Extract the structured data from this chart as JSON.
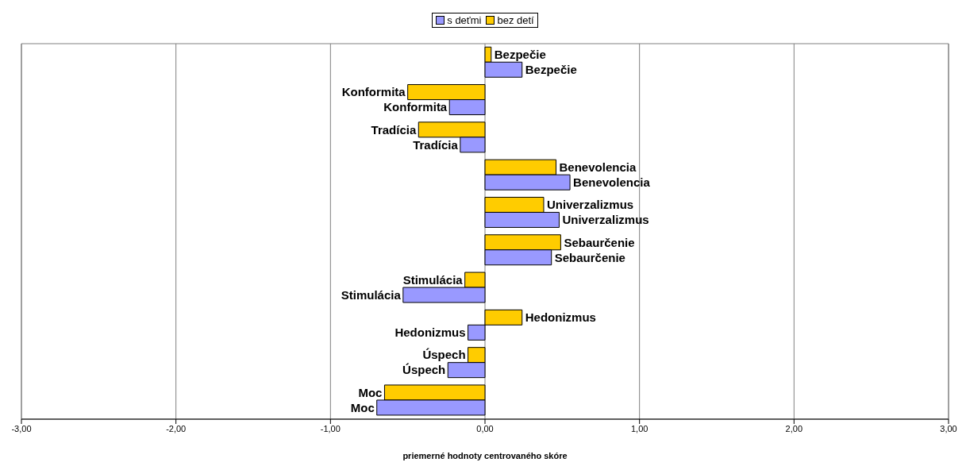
{
  "chart_data": {
    "type": "bar",
    "orientation": "horizontal",
    "xlabel": "priemerné hodnoty centrovaného skóre",
    "categories": [
      "Bezpečie",
      "Konformita",
      "Tradícia",
      "Benevolencia",
      "Univerzalizmus",
      "Sebaurčenie",
      "Stimulácia",
      "Hedonizmus",
      "Úspech",
      "Moc"
    ],
    "series": [
      {
        "name": "s deťmi",
        "color": "#9999ff",
        "values": [
          0.24,
          -0.23,
          -0.16,
          0.55,
          0.48,
          0.43,
          -0.53,
          -0.11,
          -0.24,
          -0.7
        ]
      },
      {
        "name": "bez detí",
        "color": "#ffcc00",
        "values": [
          0.04,
          -0.5,
          -0.43,
          0.46,
          0.38,
          0.49,
          -0.13,
          0.24,
          -0.11,
          -0.65
        ]
      }
    ],
    "xlim": [
      -3,
      3
    ],
    "xticks": [
      {
        "value": -3,
        "label": "-3,00"
      },
      {
        "value": -2,
        "label": "-2,00"
      },
      {
        "value": -1,
        "label": "-1,00"
      },
      {
        "value": 0,
        "label": "0,00"
      },
      {
        "value": 1,
        "label": "1,00"
      },
      {
        "value": 2,
        "label": "2,00"
      },
      {
        "value": 3,
        "label": "3,00"
      }
    ],
    "grid": "x",
    "legend": "top"
  }
}
